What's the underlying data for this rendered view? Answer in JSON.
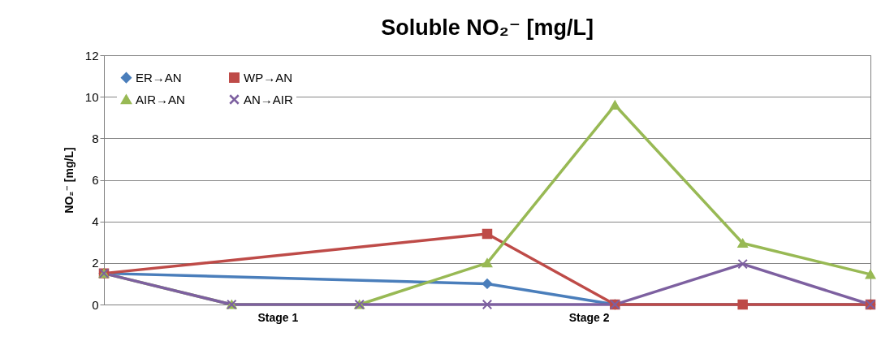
{
  "chart_data": {
    "type": "line",
    "title": "Soluble NO₂⁻ [mg/L]",
    "ylabel": "NO₂⁻ [mg/L]",
    "categories": [
      null,
      null,
      null,
      null,
      null,
      null,
      null
    ],
    "ylim": [
      0,
      12
    ],
    "yticks": [
      0,
      2,
      4,
      6,
      8,
      10,
      12
    ],
    "grid": "y",
    "legend": "top left",
    "tick_labels": "y",
    "line_style": "solid",
    "annotations": [
      "Stage 1",
      "Stage 2"
    ],
    "series": [
      {
        "name": "ER→AN",
        "color": "#4a7ebb",
        "marker": "diamond",
        "values": [
          1.5,
          null,
          null,
          1.0,
          0,
          null,
          0
        ]
      },
      {
        "name": "WP→AN",
        "color": "#be4b48",
        "marker": "square",
        "values": [
          1.5,
          null,
          null,
          3.4,
          0,
          0,
          0
        ]
      },
      {
        "name": "AIR→AN",
        "color": "#98b954",
        "marker": "triangle",
        "values": [
          1.5,
          0,
          0,
          2.0,
          9.6,
          2.95,
          1.45
        ]
      },
      {
        "name": "AN→AIR",
        "color": "#7d60a0",
        "marker": "cross",
        "values": [
          1.5,
          0,
          0,
          0,
          0,
          1.95,
          0
        ]
      }
    ]
  }
}
